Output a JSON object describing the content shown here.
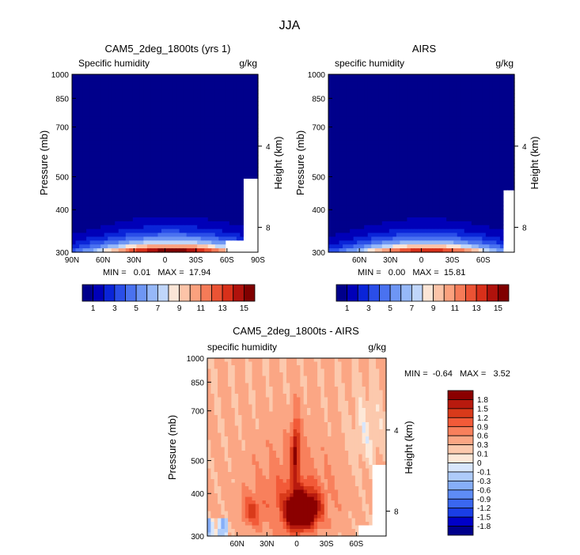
{
  "page": {
    "title": "JJA"
  },
  "colors": {
    "diff_palette": [
      "#00008b",
      "#0000c8",
      "#1a3ee6",
      "#3a67f0",
      "#5e8cf5",
      "#86aef8",
      "#aecbfa",
      "#d8e6fc",
      "#fde8d8",
      "#fcc9ad",
      "#fba684",
      "#f8805c",
      "#f25a38",
      "#d93a1a",
      "#b81a0e",
      "#8b0000"
    ],
    "seq_palette": [
      "#00008b",
      "#0000b8",
      "#0a24d8",
      "#2a4ee8",
      "#4a72f0",
      "#6e96f4",
      "#96b8f8",
      "#c0d6fa",
      "#fbe5d6",
      "#fcc4a8",
      "#fba17e",
      "#f57b58",
      "#eb5334",
      "#d8301a",
      "#b0120c",
      "#800000"
    ]
  },
  "chart_data": [
    {
      "type": "heatmap",
      "title": "CAM5_2deg_1800ts (yrs 1)",
      "subtitle_left": "Specific humidity",
      "subtitle_right": "g/kg",
      "ylabel": "Pressure (mb)",
      "ylabel_right": "Height (km)",
      "x_ticks": [
        "90N",
        "60N",
        "30N",
        "0",
        "30S",
        "60S",
        "90S"
      ],
      "y_ticks": [
        "300",
        "400",
        "500",
        "700",
        "850",
        "1000"
      ],
      "y_right_ticks": [
        "8",
        "4"
      ],
      "xlim": [
        -90,
        90
      ],
      "ylim": [
        1000,
        300
      ],
      "y_log": true,
      "min_text": "MIN =   0.01   MAX =  17.94",
      "peak_value": 17.94,
      "peak_lat": -6,
      "spread_lat": 54,
      "decay_hpa": 72,
      "mask_lat": 58,
      "mask_p": 930,
      "mask_lat2": 75,
      "mask_p2": 610
    },
    {
      "type": "heatmap",
      "title": "AIRS",
      "subtitle_left": "specific humidity",
      "subtitle_right": "g/kg",
      "ylabel": "Pressure (mb)",
      "ylabel_right": "Height (km)",
      "x_ticks": [
        "60N",
        "30N",
        "0",
        "30S",
        "60S"
      ],
      "y_ticks": [
        "300",
        "400",
        "500",
        "700",
        "850",
        "1000"
      ],
      "y_right_ticks": [
        "8",
        "4"
      ],
      "xlim": [
        -90,
        90
      ],
      "ylim": [
        1000,
        300
      ],
      "y_log": true,
      "min_text": "MIN =   0.00   MAX =  15.81",
      "peak_value": 15.81,
      "peak_lat": -5,
      "spread_lat": 52,
      "decay_hpa": 70,
      "mask_lat": 78,
      "mask_p": 650,
      "mask_lat2": 78,
      "mask_p2": 650
    },
    {
      "type": "heatmap",
      "title": "CAM5_2deg_1800ts - AIRS",
      "subtitle_left": "specific humidity",
      "subtitle_right": "g/kg",
      "ylabel": "Pressure (mb)",
      "ylabel_right": "Height (km)",
      "x_ticks": [
        "60N",
        "30N",
        "0",
        "30S",
        "60S"
      ],
      "y_ticks": [
        "300",
        "400",
        "500",
        "700",
        "850",
        "1000"
      ],
      "y_right_ticks": [
        "8",
        "4"
      ],
      "xlim": [
        -90,
        90
      ],
      "ylim": [
        1000,
        300
      ],
      "y_log": true,
      "min_text": "MIN =  -0.64   MAX =   3.52",
      "min_value": -0.64,
      "max_value": 3.52
    }
  ],
  "colorbars": [
    {
      "labels": [
        "1",
        "3",
        "5",
        "7",
        "9",
        "11",
        "13",
        "15"
      ]
    },
    {
      "labels": [
        "1",
        "3",
        "5",
        "7",
        "9",
        "11",
        "13",
        "15"
      ]
    },
    {
      "labels": [
        "1.8",
        "1.5",
        "1.2",
        "0.9",
        "0.6",
        "0.3",
        "0.1",
        "0",
        "-0.1",
        "-0.3",
        "-0.6",
        "-0.9",
        "-1.2",
        "-1.5",
        "-1.8"
      ]
    }
  ]
}
